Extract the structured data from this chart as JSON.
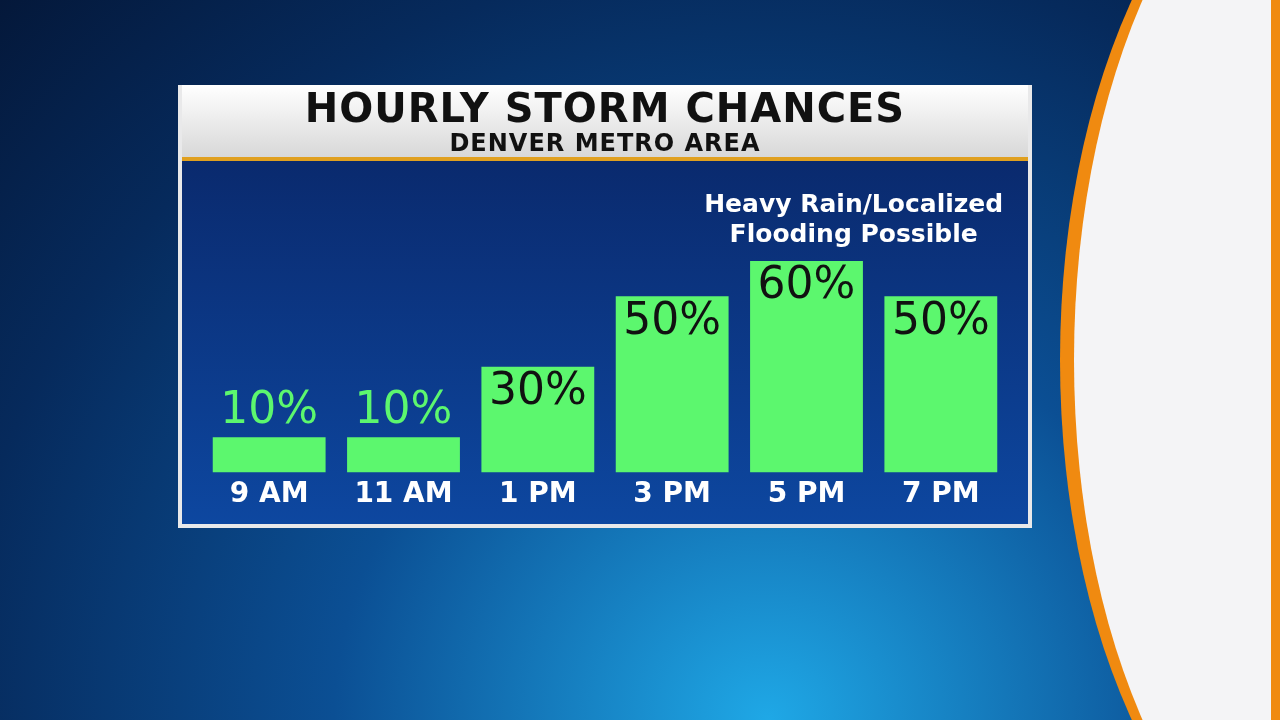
{
  "chart_data": {
    "type": "bar",
    "title": "HOURLY STORM CHANCES",
    "subtitle": "DENVER METRO AREA",
    "categories": [
      "9 AM",
      "11 AM",
      "1 PM",
      "3 PM",
      "5 PM",
      "7 PM"
    ],
    "values": [
      10,
      10,
      30,
      50,
      60,
      50
    ],
    "value_labels": [
      "10%",
      "10%",
      "30%",
      "50%",
      "60%",
      "50%"
    ],
    "color": "#5cf76e",
    "annotations": [
      "Heavy Rain/Localized Flooding Possible"
    ],
    "grid": false,
    "legend": false
  }
}
